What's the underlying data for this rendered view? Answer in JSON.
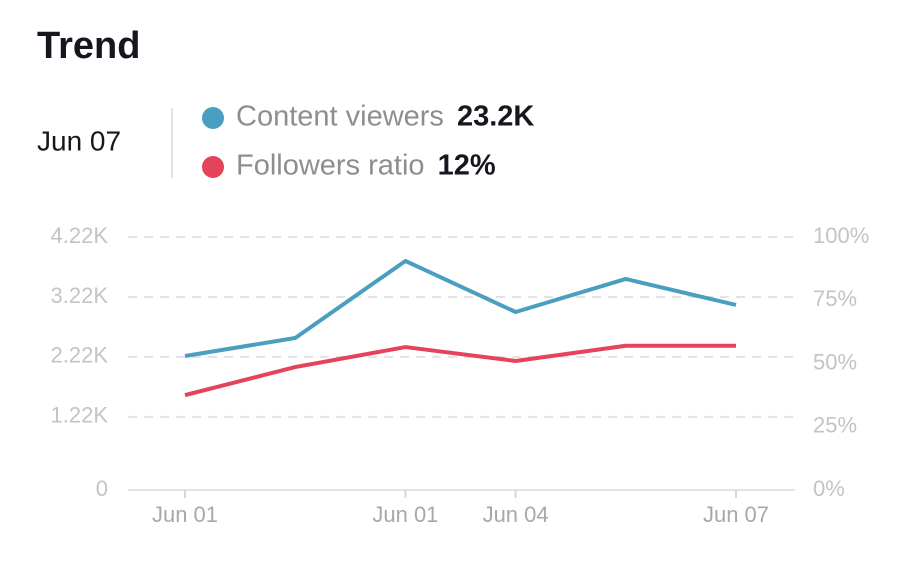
{
  "chart_data": {
    "type": "line",
    "title": "Trend",
    "selected_date": "Jun 07",
    "categories": [
      "Jun 01",
      null,
      "Jun 01",
      "Jun 04",
      null,
      "Jun 07"
    ],
    "series": [
      {
        "name": "Content viewers",
        "color": "#4a9fc0",
        "summary": "23.2K",
        "values": [
          2235,
          2535,
          3820,
          2969,
          3520,
          3086
        ]
      },
      {
        "name": "Followers ratio",
        "color": "#e5435c",
        "summary": "12%",
        "axis": "y2",
        "values": [
          37.5,
          48.6,
          56.5,
          51,
          57,
          57
        ]
      }
    ],
    "ylim": [
      0,
      4220
    ],
    "yticks": [
      0,
      {
        "value": 1220,
        "label": "1.22K"
      },
      {
        "value": 2220,
        "label": "2.22K"
      },
      {
        "value": 3220,
        "label": "3.22K"
      },
      {
        "value": 4220,
        "label": "4.22K"
      }
    ],
    "y2lim": [
      0,
      100
    ],
    "y2ticks": [
      {
        "value": 0,
        "label": "0%"
      },
      {
        "value": 25,
        "label": "25%"
      },
      {
        "value": 50,
        "label": "50%"
      },
      {
        "value": 75,
        "label": "75%"
      },
      {
        "value": 100,
        "label": "100%"
      }
    ],
    "grid": true
  }
}
